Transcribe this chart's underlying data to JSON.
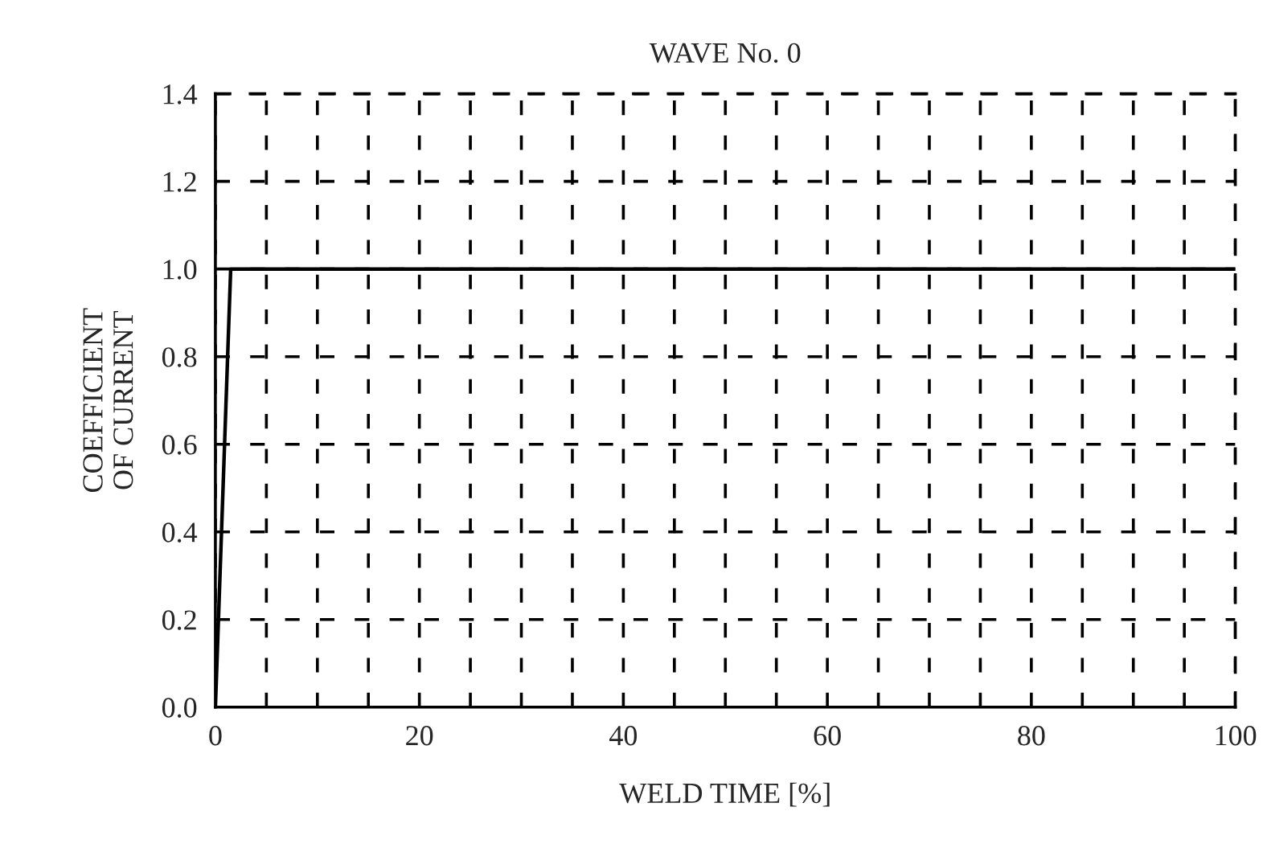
{
  "chart_data": {
    "type": "line",
    "title": "WAVE No. 0",
    "xlabel": "WELD TIME [%]",
    "ylabel": "COEFFICIENT\nOF CURRENT",
    "x": [
      0,
      1.5,
      100
    ],
    "series": [
      {
        "color": "#000000",
        "values": [
          0,
          1.0,
          1.0
        ]
      }
    ],
    "xlim": [
      0,
      100
    ],
    "ylim": [
      0,
      1.4
    ],
    "xticks": [
      0,
      {
        "value": 5,
        "label": null
      },
      {
        "value": 10,
        "label": null
      },
      {
        "value": 15,
        "label": null
      },
      20,
      {
        "value": 25,
        "label": null
      },
      {
        "value": 30,
        "label": null
      },
      {
        "value": 35,
        "label": null
      },
      40,
      {
        "value": 45,
        "label": null
      },
      {
        "value": 50,
        "label": null
      },
      {
        "value": 55,
        "label": null
      },
      60,
      {
        "value": 65,
        "label": null
      },
      {
        "value": 70,
        "label": null
      },
      {
        "value": 75,
        "label": null
      },
      80,
      {
        "value": 85,
        "label": null
      },
      {
        "value": 90,
        "label": null
      },
      {
        "value": 95,
        "label": null
      },
      100
    ],
    "yticks": [
      {
        "value": 0,
        "label": "0.0"
      },
      0.2,
      0.4,
      0.6,
      0.8,
      {
        "value": 1,
        "label": "1.0"
      },
      1.2,
      1.4
    ],
    "grid": true,
    "line_style": "solid",
    "marker": "none"
  }
}
